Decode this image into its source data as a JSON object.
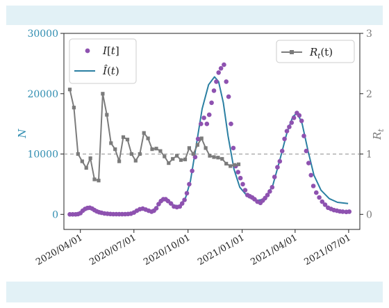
{
  "chart_data": {
    "type": "line",
    "xlabel": "",
    "ylabel_left": "N",
    "ylabel_right": "R_t",
    "x_ticks": [
      "2020/04/01",
      "2020/07/01",
      "2020/10/01",
      "2021/01/01",
      "2021/04/01",
      "2021/07/01"
    ],
    "x_range": [
      "2020-03-04",
      "2021-07-20"
    ],
    "ylim_left": [
      -2500,
      30000
    ],
    "yticks_left": [
      0,
      10000,
      20000,
      30000
    ],
    "ylim_right": [
      -0.25,
      3
    ],
    "yticks_right": [
      0,
      1,
      2,
      3
    ],
    "reference_line_right": 1,
    "legend_left": {
      "position": "top-left",
      "entries": [
        {
          "label": "I[t]",
          "marker": "dot",
          "color": "#8e52b0"
        },
        {
          "label": "Î(t)",
          "marker": "line",
          "color": "#2a7fa2"
        }
      ]
    },
    "legend_right": {
      "position": "top-right",
      "entries": [
        {
          "label": "R_t(t)",
          "marker": "square-line",
          "color": "#7b7b7b"
        }
      ]
    },
    "colors": {
      "observed": "#8e52b0",
      "fitted": "#2a7fa2",
      "rt": "#7b7b7b",
      "reference": "#999999",
      "left_axis": "#2e8cb0",
      "right_axis": "#7b7b7b"
    },
    "series": [
      {
        "name": "I[t]",
        "axis": "left",
        "kind": "scatter",
        "points": [
          [
            "2020-03-14",
            0
          ],
          [
            "2020-03-19",
            0
          ],
          [
            "2020-03-24",
            0
          ],
          [
            "2020-03-28",
            50
          ],
          [
            "2020-04-01",
            200
          ],
          [
            "2020-04-05",
            600
          ],
          [
            "2020-04-09",
            900
          ],
          [
            "2020-04-13",
            1050
          ],
          [
            "2020-04-17",
            1100
          ],
          [
            "2020-04-21",
            950
          ],
          [
            "2020-04-25",
            700
          ],
          [
            "2020-04-29",
            500
          ],
          [
            "2020-05-03",
            350
          ],
          [
            "2020-05-07",
            250
          ],
          [
            "2020-05-12",
            150
          ],
          [
            "2020-05-17",
            100
          ],
          [
            "2020-05-22",
            60
          ],
          [
            "2020-05-27",
            40
          ],
          [
            "2020-06-01",
            30
          ],
          [
            "2020-06-06",
            20
          ],
          [
            "2020-06-11",
            20
          ],
          [
            "2020-06-16",
            30
          ],
          [
            "2020-06-21",
            60
          ],
          [
            "2020-06-26",
            120
          ],
          [
            "2020-07-01",
            300
          ],
          [
            "2020-07-06",
            600
          ],
          [
            "2020-07-11",
            850
          ],
          [
            "2020-07-16",
            950
          ],
          [
            "2020-07-21",
            800
          ],
          [
            "2020-07-26",
            600
          ],
          [
            "2020-07-31",
            450
          ],
          [
            "2020-08-04",
            600
          ],
          [
            "2020-08-08",
            1000
          ],
          [
            "2020-08-12",
            1700
          ],
          [
            "2020-08-16",
            2200
          ],
          [
            "2020-08-20",
            2500
          ],
          [
            "2020-08-24",
            2500
          ],
          [
            "2020-08-28",
            2200
          ],
          [
            "2020-09-02",
            1800
          ],
          [
            "2020-09-07",
            1300
          ],
          [
            "2020-09-12",
            1200
          ],
          [
            "2020-09-17",
            1300
          ],
          [
            "2020-09-21",
            1800
          ],
          [
            "2020-09-25",
            2400
          ],
          [
            "2020-09-29",
            3500
          ],
          [
            "2020-10-03",
            5000
          ],
          [
            "2020-10-08",
            7200
          ],
          [
            "2020-10-13",
            9500
          ],
          [
            "2020-10-18",
            12500
          ],
          [
            "2020-10-23",
            15000
          ],
          [
            "2020-10-28",
            16000
          ],
          [
            "2020-11-02",
            15000
          ],
          [
            "2020-11-06",
            16500
          ],
          [
            "2020-11-10",
            18500
          ],
          [
            "2020-11-14",
            20500
          ],
          [
            "2020-11-18",
            22000
          ],
          [
            "2020-11-22",
            23500
          ],
          [
            "2020-11-26",
            24200
          ],
          [
            "2020-12-01",
            24800
          ],
          [
            "2020-12-05",
            22000
          ],
          [
            "2020-12-09",
            19500
          ],
          [
            "2020-12-13",
            15000
          ],
          [
            "2020-12-17",
            11000
          ],
          [
            "2020-12-21",
            8000
          ],
          [
            "2020-12-25",
            7000
          ],
          [
            "2020-12-29",
            6000
          ],
          [
            "2021-01-02",
            5000
          ],
          [
            "2021-01-06",
            4000
          ],
          [
            "2021-01-10",
            3200
          ],
          [
            "2021-01-14",
            3000
          ],
          [
            "2021-01-18",
            2800
          ],
          [
            "2021-01-22",
            2500
          ],
          [
            "2021-01-27",
            2100
          ],
          [
            "2021-02-01",
            1900
          ],
          [
            "2021-02-05",
            2300
          ],
          [
            "2021-02-09",
            2700
          ],
          [
            "2021-02-13",
            3200
          ],
          [
            "2021-02-17",
            3800
          ],
          [
            "2021-02-21",
            4500
          ],
          [
            "2021-02-25",
            6200
          ],
          [
            "2021-03-02",
            7800
          ],
          [
            "2021-03-06",
            8800
          ],
          [
            "2021-03-10",
            10500
          ],
          [
            "2021-03-14",
            12500
          ],
          [
            "2021-03-18",
            13800
          ],
          [
            "2021-03-22",
            14500
          ],
          [
            "2021-03-26",
            15200
          ],
          [
            "2021-03-30",
            16000
          ],
          [
            "2021-04-04",
            16800
          ],
          [
            "2021-04-08",
            16400
          ],
          [
            "2021-04-12",
            15500
          ],
          [
            "2021-04-16",
            13000
          ],
          [
            "2021-04-20",
            10500
          ],
          [
            "2021-04-24",
            8500
          ],
          [
            "2021-04-28",
            6500
          ],
          [
            "2021-05-02",
            4700
          ],
          [
            "2021-05-07",
            3600
          ],
          [
            "2021-05-12",
            2800
          ],
          [
            "2021-05-17",
            2100
          ],
          [
            "2021-05-22",
            1600
          ],
          [
            "2021-05-27",
            1100
          ],
          [
            "2021-06-01",
            900
          ],
          [
            "2021-06-06",
            700
          ],
          [
            "2021-06-11",
            600
          ],
          [
            "2021-06-16",
            500
          ],
          [
            "2021-06-21",
            450
          ],
          [
            "2021-06-27",
            400
          ],
          [
            "2021-07-02",
            450
          ]
        ]
      },
      {
        "name": "Î(t)",
        "axis": "left",
        "kind": "line",
        "points": [
          [
            "2020-03-14",
            0
          ],
          [
            "2020-03-24",
            50
          ],
          [
            "2020-04-01",
            300
          ],
          [
            "2020-04-09",
            900
          ],
          [
            "2020-04-17",
            1100
          ],
          [
            "2020-04-25",
            800
          ],
          [
            "2020-05-05",
            350
          ],
          [
            "2020-05-17",
            120
          ],
          [
            "2020-06-01",
            40
          ],
          [
            "2020-06-16",
            40
          ],
          [
            "2020-06-26",
            150
          ],
          [
            "2020-07-06",
            650
          ],
          [
            "2020-07-16",
            900
          ],
          [
            "2020-07-26",
            650
          ],
          [
            "2020-08-04",
            700
          ],
          [
            "2020-08-12",
            1600
          ],
          [
            "2020-08-20",
            2400
          ],
          [
            "2020-08-28",
            2200
          ],
          [
            "2020-09-07",
            1500
          ],
          [
            "2020-09-17",
            1400
          ],
          [
            "2020-09-27",
            2800
          ],
          [
            "2020-10-05",
            5500
          ],
          [
            "2020-10-15",
            11500
          ],
          [
            "2020-10-25",
            17500
          ],
          [
            "2020-11-05",
            21500
          ],
          [
            "2020-11-15",
            22800
          ],
          [
            "2020-11-22",
            22000
          ],
          [
            "2020-11-30",
            18500
          ],
          [
            "2020-12-08",
            13000
          ],
          [
            "2020-12-18",
            7500
          ],
          [
            "2020-12-28",
            4500
          ],
          [
            "2021-01-10",
            3000
          ],
          [
            "2021-01-25",
            2300
          ],
          [
            "2021-02-08",
            2500
          ],
          [
            "2021-02-22",
            4800
          ],
          [
            "2021-03-06",
            9000
          ],
          [
            "2021-03-18",
            13500
          ],
          [
            "2021-03-28",
            16200
          ],
          [
            "2021-04-05",
            16800
          ],
          [
            "2021-04-13",
            15000
          ],
          [
            "2021-04-23",
            10500
          ],
          [
            "2021-05-03",
            6500
          ],
          [
            "2021-05-15",
            4000
          ],
          [
            "2021-05-29",
            2600
          ],
          [
            "2021-06-12",
            2000
          ],
          [
            "2021-06-30",
            1800
          ]
        ]
      },
      {
        "name": "R_t(t)",
        "axis": "right",
        "kind": "line-square",
        "points": [
          [
            "2020-03-14",
            2.07
          ],
          [
            "2020-03-21",
            1.77
          ],
          [
            "2020-03-28",
            1.0
          ],
          [
            "2020-04-04",
            0.88
          ],
          [
            "2020-04-11",
            0.77
          ],
          [
            "2020-04-18",
            0.93
          ],
          [
            "2020-04-25",
            0.58
          ],
          [
            "2020-05-02",
            0.56
          ],
          [
            "2020-05-09",
            2.0
          ],
          [
            "2020-05-16",
            1.65
          ],
          [
            "2020-05-23",
            1.18
          ],
          [
            "2020-05-30",
            1.08
          ],
          [
            "2020-06-06",
            0.88
          ],
          [
            "2020-06-13",
            1.28
          ],
          [
            "2020-06-20",
            1.24
          ],
          [
            "2020-06-27",
            1.0
          ],
          [
            "2020-07-04",
            0.89
          ],
          [
            "2020-07-11",
            1.0
          ],
          [
            "2020-07-18",
            1.35
          ],
          [
            "2020-07-25",
            1.26
          ],
          [
            "2020-08-01",
            1.08
          ],
          [
            "2020-08-08",
            1.09
          ],
          [
            "2020-08-15",
            1.05
          ],
          [
            "2020-08-22",
            0.96
          ],
          [
            "2020-08-29",
            0.85
          ],
          [
            "2020-09-05",
            0.92
          ],
          [
            "2020-09-12",
            0.97
          ],
          [
            "2020-09-19",
            0.9
          ],
          [
            "2020-09-26",
            0.91
          ],
          [
            "2020-10-03",
            1.1
          ],
          [
            "2020-10-10",
            1.0
          ],
          [
            "2020-10-17",
            1.15
          ],
          [
            "2020-10-24",
            1.26
          ],
          [
            "2020-10-31",
            1.1
          ],
          [
            "2020-11-07",
            0.97
          ],
          [
            "2020-11-14",
            0.95
          ],
          [
            "2020-11-21",
            0.94
          ],
          [
            "2020-11-28",
            0.92
          ],
          [
            "2020-12-05",
            0.84
          ],
          [
            "2020-12-12",
            0.8
          ],
          [
            "2020-12-19",
            0.82
          ],
          [
            "2020-12-26",
            0.83
          ]
        ]
      }
    ]
  }
}
